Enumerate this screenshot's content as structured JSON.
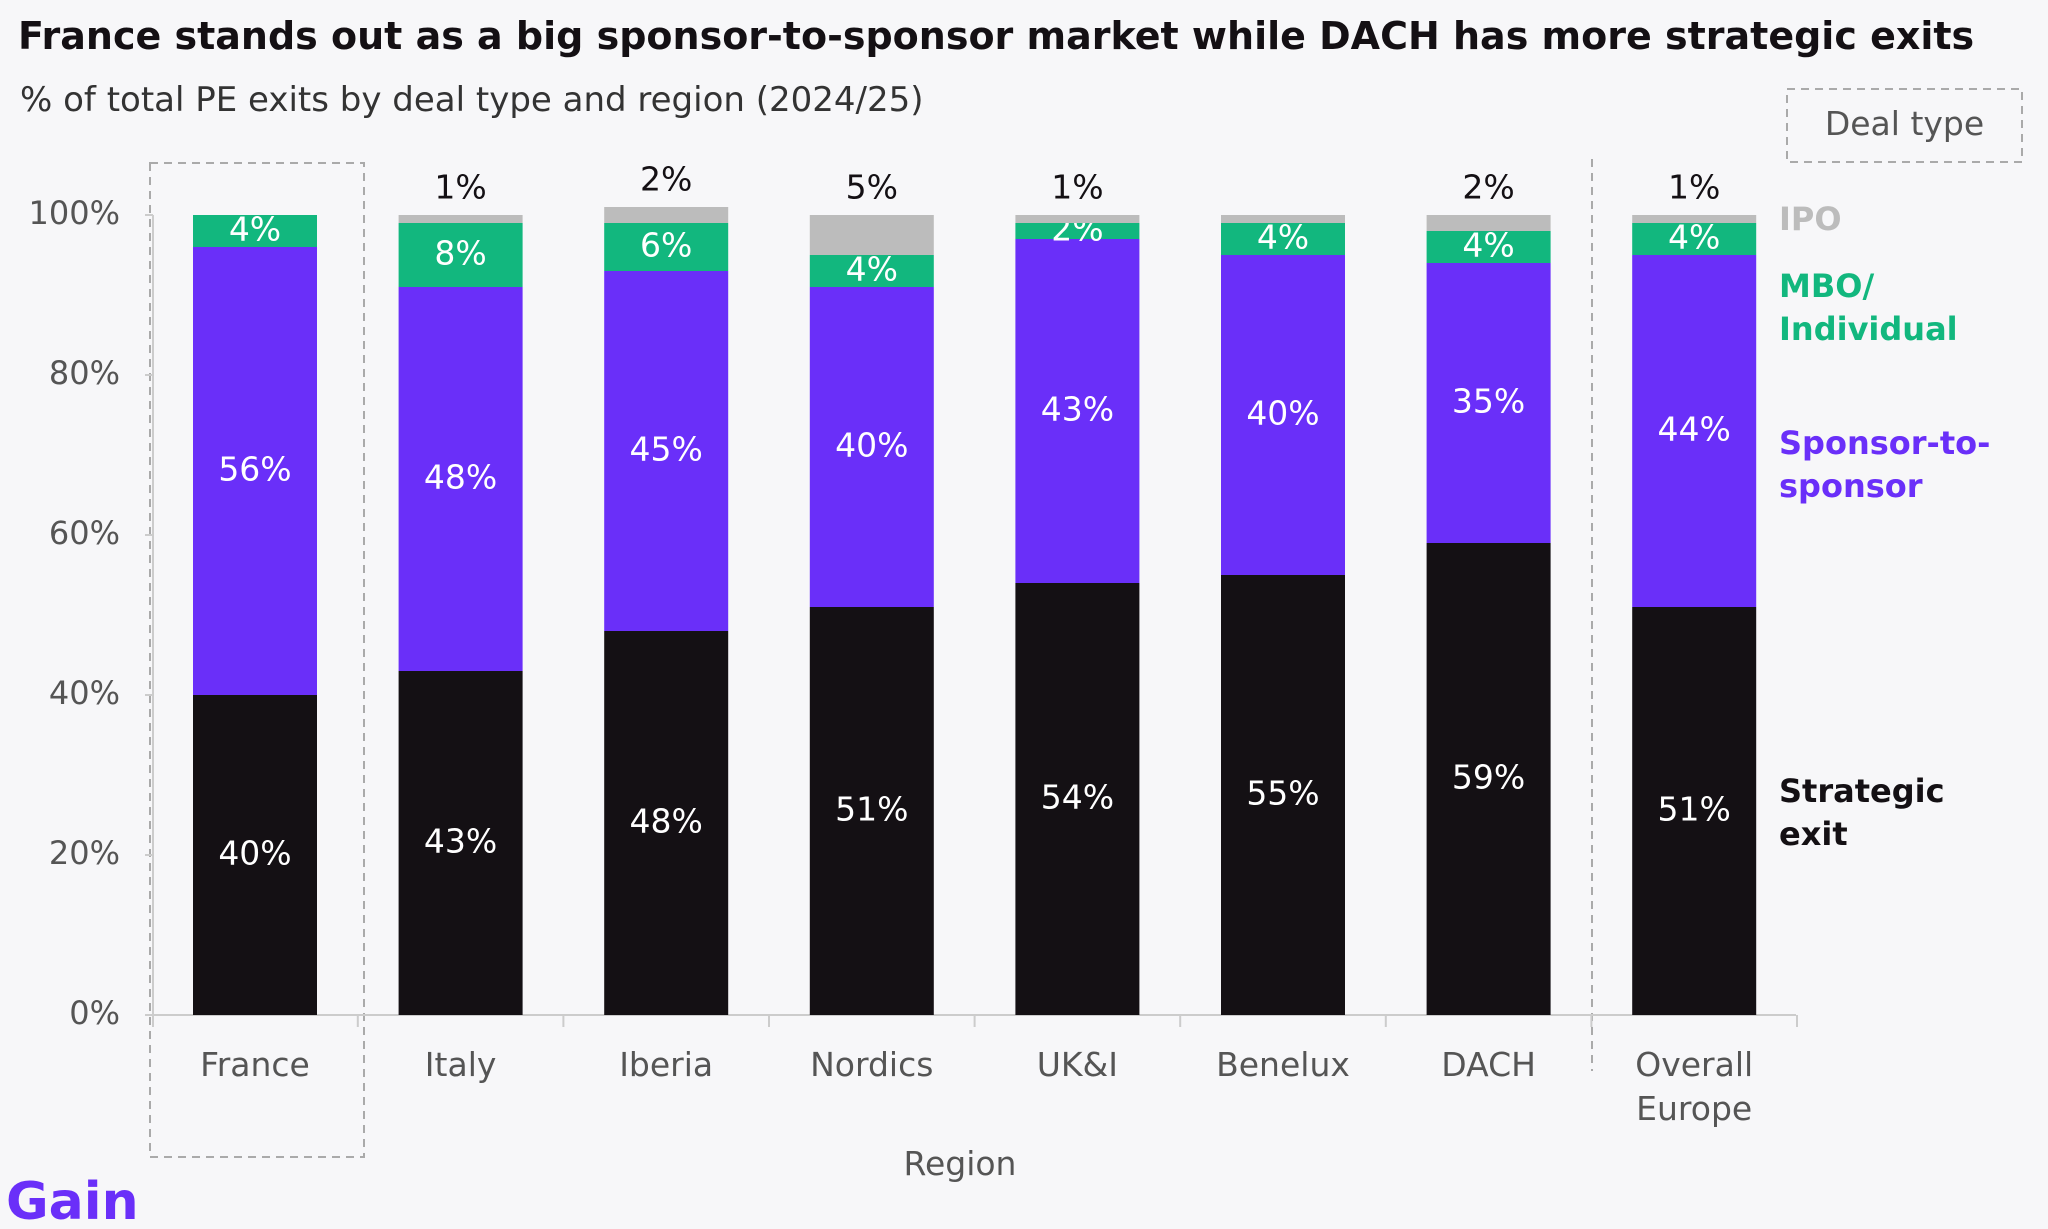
{
  "chart_data": {
    "type": "stacked-bar",
    "title": "France stands out as a big sponsor-to-sponsor market while DACH has more strategic exits",
    "subtitle": "% of total PE exits by deal type and region (2024/25)",
    "x_label": "Region",
    "legend_title": "Deal type",
    "brand": "Gain",
    "categories": [
      "France",
      "Italy",
      "Iberia",
      "Nordics",
      "UK&I",
      "Benelux",
      "DACH",
      "Overall Europe"
    ],
    "ylim": [
      0,
      100
    ],
    "yticks": [
      {
        "value": 0,
        "label": "0%"
      },
      {
        "value": 20,
        "label": "20%"
      },
      {
        "value": 40,
        "label": "40%"
      },
      {
        "value": 60,
        "label": "60%"
      },
      {
        "value": 80,
        "label": "80%"
      },
      {
        "value": 100,
        "label": "100%"
      }
    ],
    "series": [
      {
        "name": "Strategic exit",
        "color": "#141014",
        "values": [
          40,
          43,
          48,
          51,
          54,
          55,
          59,
          51
        ],
        "value_labels": [
          "40%",
          "43%",
          "48%",
          "51%",
          "54%",
          "55%",
          "59%",
          "51%"
        ]
      },
      {
        "name": "Sponsor-to-sponsor",
        "color": "#6a2ff9",
        "values": [
          56,
          48,
          45,
          40,
          43,
          40,
          35,
          44
        ],
        "value_labels": [
          "56%",
          "48%",
          "45%",
          "40%",
          "43%",
          "40%",
          "35%",
          "44%"
        ]
      },
      {
        "name": "MBO/ Individual",
        "color": "#12b77e",
        "values": [
          4,
          8,
          6,
          4,
          2,
          4,
          4,
          4
        ],
        "value_labels": [
          "4%",
          "8%",
          "6%",
          "4%",
          "2%",
          "4%",
          "4%",
          "4%"
        ]
      },
      {
        "name": "IPO",
        "color": "#bcbcbc",
        "values": [
          0,
          1,
          2,
          5,
          1,
          1,
          2,
          1
        ],
        "value_labels": [
          null,
          "1%",
          "2%",
          "5%",
          "1%",
          null,
          "2%",
          "1%"
        ]
      }
    ]
  }
}
